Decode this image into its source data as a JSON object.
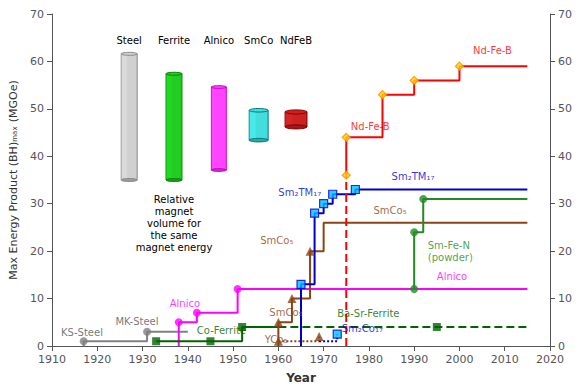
{
  "chart_data": {
    "type": "line",
    "xlabel": "Year",
    "ylabel": "Max Energy Product (BH)ₘₐₓ (MGOe)",
    "xlim": [
      1910,
      2020
    ],
    "xticks": [
      1910,
      1920,
      1930,
      1940,
      1950,
      1960,
      1970,
      1980,
      1990,
      2000,
      2010,
      2020
    ],
    "ylim": [
      0,
      70
    ],
    "yticks": [
      0,
      10,
      20,
      30,
      40,
      50,
      60,
      70
    ],
    "y2lim": [
      0,
      70
    ],
    "y2ticks": [
      0,
      10,
      20,
      30,
      40,
      50,
      60,
      70
    ],
    "grid": false,
    "series": [
      {
        "type": "line",
        "color": "#808080",
        "line_style": "solid",
        "x": [
          1917,
          1917,
          1931,
          1931,
          1940
        ],
        "values": [
          0,
          1,
          1,
          3,
          3
        ]
      },
      {
        "type": "line",
        "color": "#ff00ff",
        "line_style": "solid",
        "x": [
          1938,
          1938,
          1942,
          1942,
          1951,
          1951,
          2015
        ],
        "values": [
          0,
          5,
          5,
          7,
          7,
          12,
          12
        ]
      },
      {
        "type": "line",
        "color": "#006400",
        "line_style": "solid",
        "x": [
          1933,
          1952,
          1952,
          1960
        ],
        "values": [
          1,
          1,
          4,
          4
        ]
      },
      {
        "type": "line",
        "color": "#006400",
        "line_style": "dashed",
        "x": [
          1960,
          2015
        ],
        "values": [
          4,
          4
        ]
      },
      {
        "type": "line",
        "color": "#8B4513",
        "line_style": "solid",
        "x": [
          1960,
          1960,
          1963,
          1963,
          1967,
          1967,
          1970,
          1970,
          2015
        ],
        "values": [
          0,
          5,
          5,
          10,
          10,
          20,
          20,
          26,
          26
        ]
      },
      {
        "type": "line",
        "color": "#8B4513",
        "line_style": "dotted",
        "x": [
          1960,
          1969,
          1969
        ],
        "values": [
          1,
          1,
          2
        ]
      },
      {
        "type": "line",
        "color": "#0000cd",
        "line_style": "solid",
        "x": [
          1965,
          1965,
          1968,
          1968,
          1970,
          1970,
          1972,
          1972,
          1977,
          1977,
          2015
        ],
        "values": [
          0,
          13,
          13,
          28,
          28,
          30,
          30,
          32,
          32,
          33,
          33
        ]
      },
      {
        "type": "line",
        "color": "#0000cd",
        "line_style": "dotted",
        "x": [
          1969,
          1973,
          1973
        ],
        "values": [
          1,
          1,
          2.5
        ]
      },
      {
        "type": "line",
        "color": "#ff0000",
        "line_style": "dashed",
        "x": [
          1975,
          1975
        ],
        "values": [
          0,
          36
        ]
      },
      {
        "type": "line",
        "color": "#ff0000",
        "line_style": "solid",
        "x": [
          1975,
          1975,
          1983,
          1983,
          1990,
          1990,
          2000,
          2000,
          2015
        ],
        "values": [
          36,
          44,
          44,
          53,
          53,
          56,
          56,
          59,
          59
        ]
      },
      {
        "type": "line",
        "color": "#228B22",
        "line_style": "solid",
        "x": [
          1990,
          1990,
          1992,
          1992,
          2015
        ],
        "values": [
          12,
          24,
          24,
          31,
          31
        ]
      },
      {
        "type": "scatter",
        "marker": "circle",
        "color": "#808080",
        "x": [
          1917,
          1931
        ],
        "values": [
          1,
          3
        ]
      },
      {
        "type": "scatter",
        "marker": "circle",
        "color": "#ff00ff",
        "x": [
          1938,
          1942,
          1951
        ],
        "values": [
          5,
          7,
          12
        ]
      },
      {
        "type": "scatter",
        "marker": "square",
        "color": "#006400",
        "x": [
          1933,
          1945,
          1952
        ],
        "values": [
          1,
          1,
          4
        ]
      },
      {
        "type": "scatter",
        "marker": "square",
        "color": "#006400",
        "x": [
          1995
        ],
        "values": [
          4
        ]
      },
      {
        "type": "scatter",
        "marker": "triangle",
        "color": "#8B4513",
        "x": [
          1960,
          1963,
          1967
        ],
        "values": [
          5,
          10,
          20
        ]
      },
      {
        "type": "scatter",
        "marker": "triangle",
        "color": "#8B4513",
        "x": [
          1960,
          1969
        ],
        "values": [
          1,
          2
        ]
      },
      {
        "type": "scatter",
        "marker": "square",
        "color": "#00bfff",
        "edge_color": "#0000cd",
        "x": [
          1965,
          1968,
          1970,
          1972,
          1977
        ],
        "values": [
          13,
          28,
          30,
          32,
          33
        ]
      },
      {
        "type": "scatter",
        "marker": "square",
        "color": "#00bfff",
        "edge_color": "#0000cd",
        "x": [
          1973
        ],
        "values": [
          2.5
        ]
      },
      {
        "type": "scatter",
        "marker": "diamond",
        "color": "#FFD700",
        "edge_color": "#ff8800",
        "x": [
          1975,
          1975,
          1983,
          1990,
          2000
        ],
        "values": [
          36,
          44,
          53,
          56,
          59
        ]
      },
      {
        "type": "scatter",
        "marker": "circle",
        "color": "#228B22",
        "x": [
          1990,
          1990,
          1992
        ],
        "values": [
          12,
          24,
          31
        ]
      }
    ],
    "annotations": [
      {
        "text": "KS-Steel",
        "x": 1912,
        "y": 1.5,
        "color": "#555555"
      },
      {
        "text": "MK-Steel",
        "x": 1924,
        "y": 3.8,
        "color": "#555555"
      },
      {
        "text": "Alnico",
        "x": 1936,
        "y": 7.8,
        "color": "#ff00ff"
      },
      {
        "text": "Co-Ferrite",
        "x": 1942,
        "y": 2.0,
        "color": "#006400"
      },
      {
        "text": "SmCo₅",
        "x": 1956,
        "y": 21,
        "color": "#8B4513"
      },
      {
        "text": "SmCo₅",
        "x": 1958,
        "y": 5.8,
        "color": "#8B4513"
      },
      {
        "text": "YCo₅",
        "x": 1957,
        "y": 0.2,
        "color": "#8B4513"
      },
      {
        "text": "Sm₂TM₁₇",
        "x": 1960,
        "y": 31.0,
        "color": "#0000cd"
      },
      {
        "text": "Sm₂Co₁₇",
        "x": 1974,
        "y": 2.5,
        "color": "#0000cd"
      },
      {
        "text": "Nd-Fe-B",
        "x": 1976,
        "y": 45,
        "color": "#ff0000"
      },
      {
        "text": "Ba-Sr-Ferrite",
        "x": 1973,
        "y": 5.5,
        "color": "#006400"
      },
      {
        "text": "SmCo₅",
        "x": 1981,
        "y": 27.2,
        "color": "#8B4513"
      },
      {
        "text": "Sm₂TM₁₇",
        "x": 1985,
        "y": 34.5,
        "color": "#0000cd"
      },
      {
        "text": "Sm-Fe-N\n(powder)",
        "x": 1993,
        "y": 17.5,
        "color": "#228B22"
      },
      {
        "text": "Alnico",
        "x": 1995,
        "y": 13.3,
        "color": "#ff00ff"
      },
      {
        "text": "Nd-Fe-B",
        "x": 2003,
        "y": 61,
        "color": "#ff0000"
      }
    ],
    "inset": {
      "text": "Relative\nmagnet\nvolume for\nthe same\nmagnet energy",
      "items": [
        {
          "label": "Steel",
          "color": "#d0d0d0",
          "edge_color": "#888888"
        },
        {
          "label": "Ferrite",
          "color": "#22cc22",
          "edge_color": "#008800"
        },
        {
          "label": "Alnico",
          "color": "#ff44ff",
          "edge_color": "#cc00cc"
        },
        {
          "label": "SmCo",
          "color": "#44dddd",
          "edge_color": "#007777"
        },
        {
          "label": "NdFeB",
          "color": "#cc2222",
          "edge_color": "#880000"
        }
      ]
    }
  }
}
